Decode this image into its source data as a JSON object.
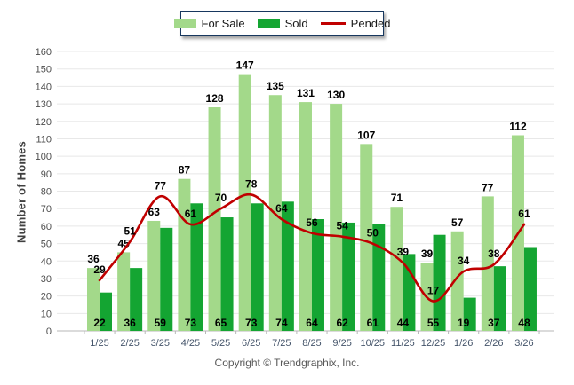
{
  "chart_data": {
    "type": "bar",
    "subtype": "grouped bars with line overlay",
    "title": "",
    "xlabel": "",
    "ylabel": "Number of Homes",
    "ylim": [
      0,
      160
    ],
    "ytick_step": 10,
    "grid": true,
    "legend_position": "top-center",
    "categories": [
      "1/25",
      "2/25",
      "3/25",
      "4/25",
      "5/25",
      "6/25",
      "7/25",
      "8/25",
      "9/25",
      "10/25",
      "11/25",
      "12/25",
      "1/26",
      "2/26",
      "3/26"
    ],
    "series": [
      {
        "name": "For Sale",
        "type": "bar",
        "color": "#a3d98a",
        "values": [
          36,
          45,
          63,
          87,
          128,
          147,
          135,
          131,
          130,
          107,
          71,
          39,
          57,
          77,
          112
        ]
      },
      {
        "name": "Sold",
        "type": "bar",
        "color": "#14a532",
        "values": [
          22,
          36,
          59,
          73,
          65,
          73,
          74,
          64,
          62,
          61,
          44,
          55,
          19,
          37,
          48
        ]
      },
      {
        "name": "Pended",
        "type": "line",
        "color": "#c00000",
        "values": [
          29,
          51,
          77,
          61,
          70,
          78,
          64,
          56,
          54,
          50,
          39,
          17,
          34,
          38,
          61
        ]
      }
    ]
  },
  "footer": {
    "text": "Copyright © Trendgraphix, Inc."
  }
}
